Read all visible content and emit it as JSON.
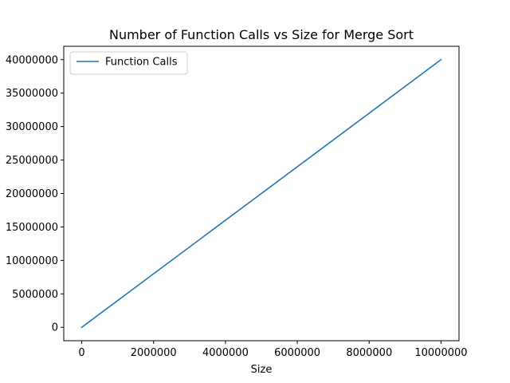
{
  "chart_data": {
    "type": "line",
    "title": "Number of Function Calls vs Size for Merge Sort",
    "xlabel": "Size",
    "ylabel": "",
    "xlim": [
      -500000,
      10500000
    ],
    "ylim": [
      -2000000,
      42000000
    ],
    "x_ticks": [
      0,
      2000000,
      4000000,
      6000000,
      8000000,
      10000000
    ],
    "x_tick_labels": [
      "0",
      "2000000",
      "4000000",
      "6000000",
      "8000000",
      "10000000"
    ],
    "y_ticks": [
      0,
      5000000,
      10000000,
      15000000,
      20000000,
      25000000,
      30000000,
      35000000,
      40000000
    ],
    "y_tick_labels": [
      "0",
      "5000000",
      "10000000",
      "15000000",
      "20000000",
      "25000000",
      "30000000",
      "35000000",
      "40000000"
    ],
    "grid": false,
    "legend_position": "top-left",
    "series": [
      {
        "name": "Function Calls",
        "color": "#1f77b4",
        "x": [
          0,
          10000000
        ],
        "y": [
          0,
          40000000
        ]
      }
    ]
  }
}
